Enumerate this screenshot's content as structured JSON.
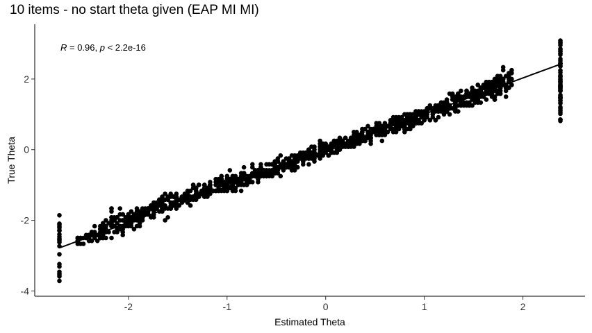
{
  "chart_data": {
    "type": "scatter",
    "title": "10 items - no start theta given (EAP MI MI)",
    "xlabel": "Estimated Theta",
    "ylabel": "True Theta",
    "xlim": [
      -2.95,
      2.63
    ],
    "ylim": [
      -4.15,
      3.55
    ],
    "xticks": [
      -2,
      -1,
      0,
      1,
      2
    ],
    "yticks": [
      -4,
      -2,
      0,
      2
    ],
    "grid": false,
    "legend": "none",
    "annotation": {
      "r_label": "R",
      "r_text": " = 0.96, ",
      "p_label": "p",
      "p_text": " < 2.2e-16"
    },
    "regression_line": {
      "x": [
        -2.7,
        2.38
      ],
      "y": [
        -2.78,
        2.42
      ]
    },
    "point_color": "#000000",
    "points_note_x": [
      -2.7,
      -2.5,
      -2.4,
      -2.25,
      -2.2,
      -2.0,
      -1.8,
      -1.6,
      -1.4,
      -1.2,
      -1.0,
      -0.8,
      -0.6,
      -0.4,
      -0.2,
      0.0,
      0.2,
      0.4,
      0.6,
      0.8,
      1.0,
      1.2,
      1.4,
      1.6,
      1.8,
      2.0,
      2.38
    ],
    "points_note_y_center": [
      -2.8,
      -2.55,
      -2.45,
      -2.3,
      -2.2,
      -2.0,
      -1.75,
      -1.55,
      -1.35,
      -1.15,
      -0.95,
      -0.8,
      -0.6,
      -0.4,
      -0.2,
      0.0,
      0.2,
      0.4,
      0.6,
      0.8,
      1.0,
      1.2,
      1.45,
      1.65,
      1.85,
      2.0,
      2.4
    ],
    "points_note_y_spread": [
      1.0,
      0.3,
      0.35,
      0.45,
      0.7,
      0.5,
      0.45,
      0.45,
      0.5,
      0.5,
      0.5,
      0.4,
      0.4,
      0.35,
      0.35,
      0.35,
      0.35,
      0.35,
      0.35,
      0.35,
      0.4,
      0.4,
      0.45,
      0.45,
      0.6,
      0.5,
      1.1
    ]
  }
}
